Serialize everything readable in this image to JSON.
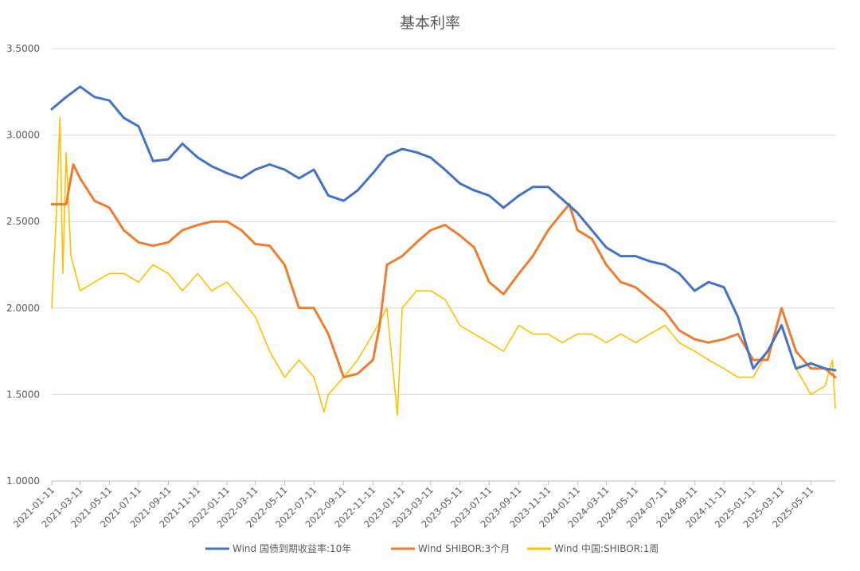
{
  "chart_data": {
    "type": "line",
    "title": "基本利率",
    "xlabel": "",
    "ylabel": "",
    "ylim": [
      1.0,
      3.5
    ],
    "y_ticks": [
      "1.0000",
      "1.5000",
      "2.0000",
      "2.5000",
      "3.0000",
      "3.5000"
    ],
    "x_tick_labels": [
      "2021-01-11",
      "2021-03-11",
      "2021-05-11",
      "2021-07-11",
      "2021-09-11",
      "2021-11-11",
      "2022-01-11",
      "2022-03-11",
      "2022-05-11",
      "2022-07-11",
      "2022-09-11",
      "2022-11-11",
      "2023-01-11",
      "2023-03-11",
      "2023-05-11",
      "2023-07-11",
      "2023-09-11",
      "2023-11-11",
      "2024-01-11",
      "2024-03-11",
      "2024-05-11",
      "2024-07-11",
      "2024-09-11",
      "2024-11-11",
      "2025-01-11",
      "2025-03-11",
      "2025-05-11"
    ],
    "grid": "horizontal",
    "legend_position": "bottom",
    "series": [
      {
        "name": "Wind 国债到期收益率:10年",
        "color": "#4472C4",
        "x": [
          "2021-01-11",
          "2021-02-10",
          "2021-03-11",
          "2021-04-10",
          "2021-05-11",
          "2021-06-10",
          "2021-07-11",
          "2021-08-10",
          "2021-09-11",
          "2021-10-10",
          "2021-11-11",
          "2021-12-10",
          "2022-01-11",
          "2022-02-10",
          "2022-03-11",
          "2022-04-10",
          "2022-05-11",
          "2022-06-10",
          "2022-07-11",
          "2022-08-10",
          "2022-09-11",
          "2022-10-10",
          "2022-11-11",
          "2022-12-10",
          "2023-01-11",
          "2023-02-10",
          "2023-03-11",
          "2023-04-10",
          "2023-05-11",
          "2023-06-10",
          "2023-07-11",
          "2023-08-10",
          "2023-09-11",
          "2023-10-10",
          "2023-11-11",
          "2023-12-10",
          "2024-01-11",
          "2024-02-10",
          "2024-03-11",
          "2024-04-10",
          "2024-05-11",
          "2024-06-10",
          "2024-07-11",
          "2024-08-10",
          "2024-09-11",
          "2024-10-10",
          "2024-11-11",
          "2024-12-10",
          "2025-01-11",
          "2025-02-10",
          "2025-03-11",
          "2025-04-10",
          "2025-05-11",
          "2025-06-10",
          "2025-07-01"
        ],
        "values": [
          3.15,
          3.22,
          3.28,
          3.22,
          3.2,
          3.1,
          3.05,
          2.85,
          2.86,
          2.95,
          2.87,
          2.82,
          2.78,
          2.75,
          2.8,
          2.83,
          2.8,
          2.75,
          2.8,
          2.65,
          2.62,
          2.68,
          2.78,
          2.88,
          2.92,
          2.9,
          2.87,
          2.8,
          2.72,
          2.68,
          2.65,
          2.58,
          2.65,
          2.7,
          2.7,
          2.63,
          2.55,
          2.45,
          2.35,
          2.3,
          2.3,
          2.27,
          2.25,
          2.2,
          2.1,
          2.15,
          2.12,
          1.95,
          1.65,
          1.75,
          1.9,
          1.65,
          1.68,
          1.65,
          1.64
        ]
      },
      {
        "name": "Wind SHIBOR:3个月",
        "color": "#ED7D31",
        "x": [
          "2021-01-11",
          "2021-02-10",
          "2021-02-25",
          "2021-03-11",
          "2021-04-10",
          "2021-05-11",
          "2021-06-10",
          "2021-07-11",
          "2021-08-10",
          "2021-09-11",
          "2021-10-10",
          "2021-11-11",
          "2021-12-10",
          "2022-01-11",
          "2022-02-10",
          "2022-03-11",
          "2022-04-10",
          "2022-05-11",
          "2022-06-10",
          "2022-07-11",
          "2022-08-10",
          "2022-09-11",
          "2022-10-10",
          "2022-11-11",
          "2022-11-25",
          "2022-12-10",
          "2023-01-11",
          "2023-02-10",
          "2023-03-11",
          "2023-04-10",
          "2023-05-11",
          "2023-06-10",
          "2023-07-11",
          "2023-08-10",
          "2023-09-11",
          "2023-10-10",
          "2023-11-11",
          "2023-12-10",
          "2023-12-25",
          "2024-01-11",
          "2024-02-10",
          "2024-03-11",
          "2024-04-10",
          "2024-05-11",
          "2024-06-10",
          "2024-07-11",
          "2024-08-10",
          "2024-09-11",
          "2024-10-10",
          "2024-11-11",
          "2024-12-10",
          "2025-01-11",
          "2025-02-10",
          "2025-03-11",
          "2025-04-10",
          "2025-05-11",
          "2025-06-10",
          "2025-07-01"
        ],
        "values": [
          2.6,
          2.6,
          2.83,
          2.75,
          2.62,
          2.58,
          2.45,
          2.38,
          2.36,
          2.38,
          2.45,
          2.48,
          2.5,
          2.5,
          2.45,
          2.37,
          2.36,
          2.25,
          2.0,
          2.0,
          1.85,
          1.6,
          1.62,
          1.7,
          1.9,
          2.25,
          2.3,
          2.38,
          2.45,
          2.48,
          2.42,
          2.35,
          2.15,
          2.08,
          2.2,
          2.3,
          2.45,
          2.55,
          2.6,
          2.45,
          2.4,
          2.25,
          2.15,
          2.12,
          2.05,
          1.98,
          1.87,
          1.82,
          1.8,
          1.82,
          1.85,
          1.7,
          1.7,
          2.0,
          1.75,
          1.65,
          1.65,
          1.6
        ]
      },
      {
        "name": "Wind 中国:SHIBOR:1周",
        "color": "#FFC000",
        "x": [
          "2021-01-11",
          "2021-01-20",
          "2021-01-28",
          "2021-02-03",
          "2021-02-10",
          "2021-02-20",
          "2021-03-11",
          "2021-04-10",
          "2021-05-11",
          "2021-06-10",
          "2021-07-11",
          "2021-08-10",
          "2021-09-11",
          "2021-10-10",
          "2021-11-11",
          "2021-12-10",
          "2022-01-11",
          "2022-02-10",
          "2022-03-11",
          "2022-04-10",
          "2022-05-11",
          "2022-06-10",
          "2022-07-11",
          "2022-08-01",
          "2022-08-10",
          "2022-09-11",
          "2022-10-10",
          "2022-11-11",
          "2022-12-10",
          "2023-01-01",
          "2023-01-11",
          "2023-02-10",
          "2023-03-11",
          "2023-04-10",
          "2023-05-11",
          "2023-06-10",
          "2023-07-11",
          "2023-08-10",
          "2023-09-11",
          "2023-10-10",
          "2023-11-11",
          "2023-12-10",
          "2024-01-11",
          "2024-02-10",
          "2024-03-11",
          "2024-04-10",
          "2024-05-11",
          "2024-06-10",
          "2024-07-11",
          "2024-08-10",
          "2024-09-11",
          "2024-10-10",
          "2024-11-11",
          "2024-12-10",
          "2025-01-11",
          "2025-02-10",
          "2025-03-11",
          "2025-04-10",
          "2025-05-11",
          "2025-06-10",
          "2025-06-25",
          "2025-07-01"
        ],
        "values": [
          2.0,
          2.5,
          3.1,
          2.2,
          2.9,
          2.3,
          2.1,
          2.15,
          2.2,
          2.2,
          2.15,
          2.25,
          2.2,
          2.1,
          2.2,
          2.1,
          2.15,
          2.05,
          1.95,
          1.75,
          1.6,
          1.7,
          1.6,
          1.4,
          1.5,
          1.6,
          1.7,
          1.85,
          2.0,
          1.38,
          2.0,
          2.1,
          2.1,
          2.05,
          1.9,
          1.85,
          1.8,
          1.75,
          1.9,
          1.85,
          1.85,
          1.8,
          1.85,
          1.85,
          1.8,
          1.85,
          1.8,
          1.85,
          1.9,
          1.8,
          1.75,
          1.7,
          1.65,
          1.6,
          1.6,
          1.75,
          1.9,
          1.65,
          1.5,
          1.55,
          1.7,
          1.42
        ]
      }
    ]
  }
}
